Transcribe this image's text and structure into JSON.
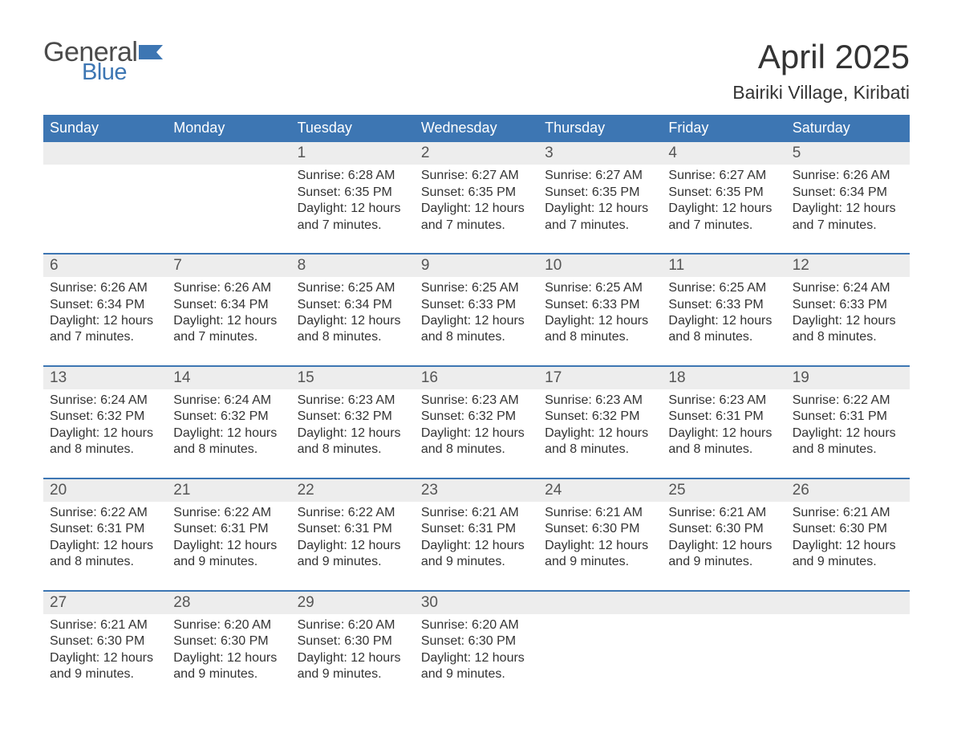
{
  "brand": {
    "word1": "General",
    "word2": "Blue",
    "accent_color": "#3d76b3"
  },
  "header": {
    "title": "April 2025",
    "subtitle": "Bairiki Village, Kiribati"
  },
  "colors": {
    "header_bg": "#3d76b3",
    "daynum_bg": "#ededed",
    "week_border": "#3d76b3",
    "text": "#333333",
    "daynum_text": "#555555"
  },
  "fontsizes": {
    "title": 42,
    "subtitle": 23,
    "dayheader": 18,
    "daynum": 19,
    "body": 16
  },
  "day_headers": [
    "Sunday",
    "Monday",
    "Tuesday",
    "Wednesday",
    "Thursday",
    "Friday",
    "Saturday"
  ],
  "weeks": [
    {
      "days": [
        {
          "num": "",
          "lines": []
        },
        {
          "num": "",
          "lines": []
        },
        {
          "num": "1",
          "lines": [
            "Sunrise: 6:28 AM",
            "Sunset: 6:35 PM",
            "Daylight: 12 hours and 7 minutes."
          ]
        },
        {
          "num": "2",
          "lines": [
            "Sunrise: 6:27 AM",
            "Sunset: 6:35 PM",
            "Daylight: 12 hours and 7 minutes."
          ]
        },
        {
          "num": "3",
          "lines": [
            "Sunrise: 6:27 AM",
            "Sunset: 6:35 PM",
            "Daylight: 12 hours and 7 minutes."
          ]
        },
        {
          "num": "4",
          "lines": [
            "Sunrise: 6:27 AM",
            "Sunset: 6:35 PM",
            "Daylight: 12 hours and 7 minutes."
          ]
        },
        {
          "num": "5",
          "lines": [
            "Sunrise: 6:26 AM",
            "Sunset: 6:34 PM",
            "Daylight: 12 hours and 7 minutes."
          ]
        }
      ]
    },
    {
      "days": [
        {
          "num": "6",
          "lines": [
            "Sunrise: 6:26 AM",
            "Sunset: 6:34 PM",
            "Daylight: 12 hours and 7 minutes."
          ]
        },
        {
          "num": "7",
          "lines": [
            "Sunrise: 6:26 AM",
            "Sunset: 6:34 PM",
            "Daylight: 12 hours and 7 minutes."
          ]
        },
        {
          "num": "8",
          "lines": [
            "Sunrise: 6:25 AM",
            "Sunset: 6:34 PM",
            "Daylight: 12 hours and 8 minutes."
          ]
        },
        {
          "num": "9",
          "lines": [
            "Sunrise: 6:25 AM",
            "Sunset: 6:33 PM",
            "Daylight: 12 hours and 8 minutes."
          ]
        },
        {
          "num": "10",
          "lines": [
            "Sunrise: 6:25 AM",
            "Sunset: 6:33 PM",
            "Daylight: 12 hours and 8 minutes."
          ]
        },
        {
          "num": "11",
          "lines": [
            "Sunrise: 6:25 AM",
            "Sunset: 6:33 PM",
            "Daylight: 12 hours and 8 minutes."
          ]
        },
        {
          "num": "12",
          "lines": [
            "Sunrise: 6:24 AM",
            "Sunset: 6:33 PM",
            "Daylight: 12 hours and 8 minutes."
          ]
        }
      ]
    },
    {
      "days": [
        {
          "num": "13",
          "lines": [
            "Sunrise: 6:24 AM",
            "Sunset: 6:32 PM",
            "Daylight: 12 hours and 8 minutes."
          ]
        },
        {
          "num": "14",
          "lines": [
            "Sunrise: 6:24 AM",
            "Sunset: 6:32 PM",
            "Daylight: 12 hours and 8 minutes."
          ]
        },
        {
          "num": "15",
          "lines": [
            "Sunrise: 6:23 AM",
            "Sunset: 6:32 PM",
            "Daylight: 12 hours and 8 minutes."
          ]
        },
        {
          "num": "16",
          "lines": [
            "Sunrise: 6:23 AM",
            "Sunset: 6:32 PM",
            "Daylight: 12 hours and 8 minutes."
          ]
        },
        {
          "num": "17",
          "lines": [
            "Sunrise: 6:23 AM",
            "Sunset: 6:32 PM",
            "Daylight: 12 hours and 8 minutes."
          ]
        },
        {
          "num": "18",
          "lines": [
            "Sunrise: 6:23 AM",
            "Sunset: 6:31 PM",
            "Daylight: 12 hours and 8 minutes."
          ]
        },
        {
          "num": "19",
          "lines": [
            "Sunrise: 6:22 AM",
            "Sunset: 6:31 PM",
            "Daylight: 12 hours and 8 minutes."
          ]
        }
      ]
    },
    {
      "days": [
        {
          "num": "20",
          "lines": [
            "Sunrise: 6:22 AM",
            "Sunset: 6:31 PM",
            "Daylight: 12 hours and 8 minutes."
          ]
        },
        {
          "num": "21",
          "lines": [
            "Sunrise: 6:22 AM",
            "Sunset: 6:31 PM",
            "Daylight: 12 hours and 9 minutes."
          ]
        },
        {
          "num": "22",
          "lines": [
            "Sunrise: 6:22 AM",
            "Sunset: 6:31 PM",
            "Daylight: 12 hours and 9 minutes."
          ]
        },
        {
          "num": "23",
          "lines": [
            "Sunrise: 6:21 AM",
            "Sunset: 6:31 PM",
            "Daylight: 12 hours and 9 minutes."
          ]
        },
        {
          "num": "24",
          "lines": [
            "Sunrise: 6:21 AM",
            "Sunset: 6:30 PM",
            "Daylight: 12 hours and 9 minutes."
          ]
        },
        {
          "num": "25",
          "lines": [
            "Sunrise: 6:21 AM",
            "Sunset: 6:30 PM",
            "Daylight: 12 hours and 9 minutes."
          ]
        },
        {
          "num": "26",
          "lines": [
            "Sunrise: 6:21 AM",
            "Sunset: 6:30 PM",
            "Daylight: 12 hours and 9 minutes."
          ]
        }
      ]
    },
    {
      "days": [
        {
          "num": "27",
          "lines": [
            "Sunrise: 6:21 AM",
            "Sunset: 6:30 PM",
            "Daylight: 12 hours and 9 minutes."
          ]
        },
        {
          "num": "28",
          "lines": [
            "Sunrise: 6:20 AM",
            "Sunset: 6:30 PM",
            "Daylight: 12 hours and 9 minutes."
          ]
        },
        {
          "num": "29",
          "lines": [
            "Sunrise: 6:20 AM",
            "Sunset: 6:30 PM",
            "Daylight: 12 hours and 9 minutes."
          ]
        },
        {
          "num": "30",
          "lines": [
            "Sunrise: 6:20 AM",
            "Sunset: 6:30 PM",
            "Daylight: 12 hours and 9 minutes."
          ]
        },
        {
          "num": "",
          "lines": []
        },
        {
          "num": "",
          "lines": []
        },
        {
          "num": "",
          "lines": []
        }
      ]
    }
  ]
}
